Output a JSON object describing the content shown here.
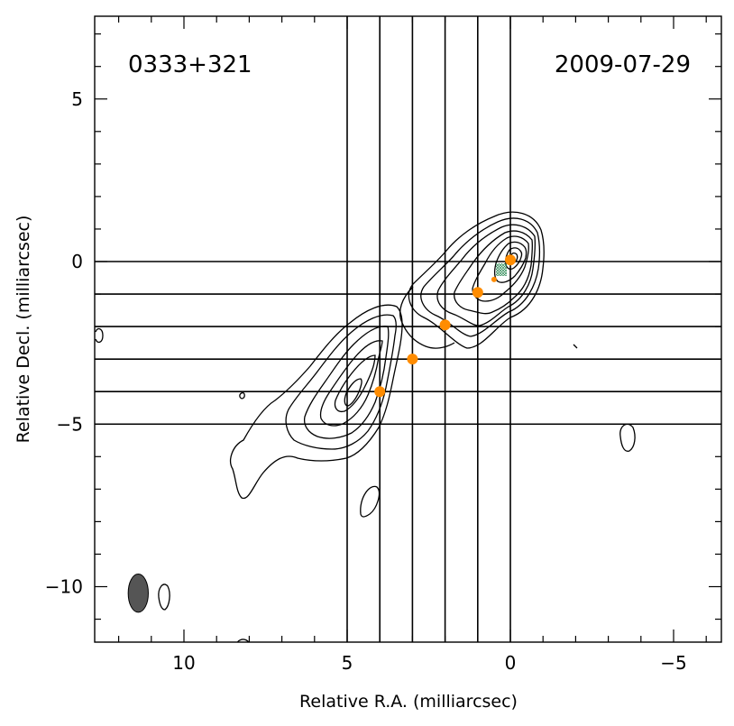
{
  "chart_data": {
    "type": "contour",
    "title_left": "0333+321",
    "title_right": "2009-07-29",
    "xlabel": "Relative R.A. (milliarcsec)",
    "ylabel": "Relative Decl. (milliarcsec)",
    "xlim": [
      12.7,
      -6.4
    ],
    "ylim": [
      -11.6,
      7.5
    ],
    "x_major_ticks": [
      10,
      5,
      0,
      -5
    ],
    "x_tick_labels": [
      "10",
      "5",
      "0",
      "−5"
    ],
    "y_major_ticks": [
      5,
      0,
      -5,
      -10
    ],
    "y_tick_labels": [
      "5",
      "0",
      "−5",
      "−10"
    ],
    "grid_lines": {
      "vertical_x": [
        5,
        4,
        3,
        2,
        1,
        0
      ],
      "horizontal_y": [
        0,
        -1,
        -2,
        -3,
        -4,
        -5
      ]
    },
    "components": [
      {
        "x": 0.0,
        "y": 0.05
      },
      {
        "x": 1.0,
        "y": -0.95
      },
      {
        "x": 2.0,
        "y": -1.95
      },
      {
        "x": 3.0,
        "y": -3.0
      },
      {
        "x": 4.0,
        "y": -4.0
      }
    ],
    "minor_component": {
      "x": 0.5,
      "y": -0.55
    },
    "beam": {
      "x": 11.4,
      "y": -10.2,
      "major_mas": 1.1,
      "minor_mas": 1.2
    },
    "colors": {
      "component": "#ff8c00",
      "beam": "#555555",
      "contour": "#000000",
      "core_hatch": "#2e8b57"
    }
  }
}
